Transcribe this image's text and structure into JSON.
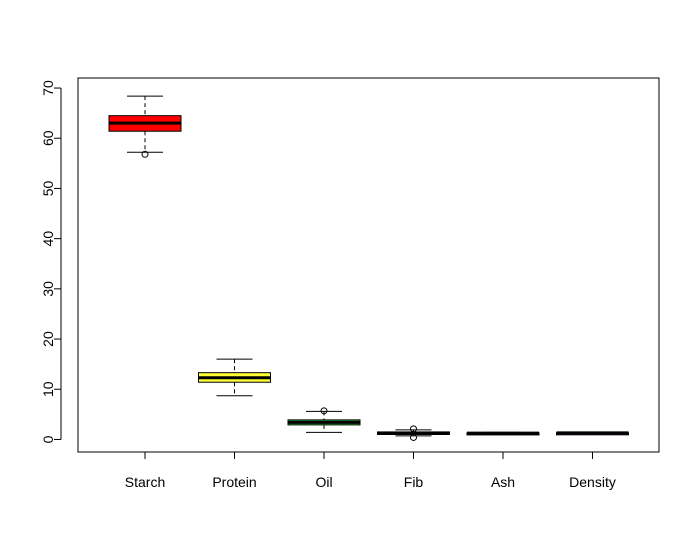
{
  "chart_data": {
    "type": "box",
    "title": "",
    "xlabel": "",
    "ylabel": "",
    "ylim": [
      -2.5,
      72
    ],
    "yticks": [
      0,
      10,
      20,
      30,
      40,
      50,
      60,
      70
    ],
    "categories": [
      "Starch",
      "Protein",
      "Oil",
      "Fib",
      "Ash",
      "Density"
    ],
    "boxes": [
      {
        "name": "Starch",
        "color": "#ff0000",
        "whisker_low": 57.2,
        "q1": 61.4,
        "median": 63.0,
        "q3": 64.5,
        "whisker_high": 68.4,
        "outliers": [
          56.8
        ]
      },
      {
        "name": "Protein",
        "color": "#ffff33",
        "whisker_low": 8.7,
        "q1": 11.4,
        "median": 12.3,
        "q3": 13.3,
        "whisker_high": 16.0,
        "outliers": []
      },
      {
        "name": "Oil",
        "color": "#33cc33",
        "whisker_low": 1.4,
        "q1": 2.9,
        "median": 3.4,
        "q3": 3.9,
        "whisker_high": 5.6,
        "outliers": [
          5.7
        ]
      },
      {
        "name": "Fib",
        "color": "#0000ff",
        "whisker_low": 0.7,
        "q1": 1.0,
        "median": 1.2,
        "q3": 1.5,
        "whisker_high": 1.9,
        "outliers": [
          2.1,
          0.4
        ]
      },
      {
        "name": "Ash",
        "color": "#00ffff",
        "whisker_low": 1.1,
        "q1": 1.2,
        "median": 1.25,
        "q3": 1.3,
        "whisker_high": 1.4,
        "outliers": []
      },
      {
        "name": "Density",
        "color": "#ff00ff",
        "whisker_low": 1.25,
        "q1": 1.28,
        "median": 1.3,
        "q3": 1.32,
        "whisker_high": 1.35,
        "outliers": []
      }
    ]
  }
}
